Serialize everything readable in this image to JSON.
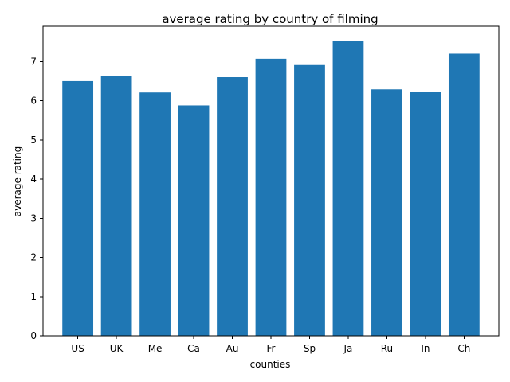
{
  "chart_data": {
    "type": "bar",
    "title": "average rating by country of filming",
    "xlabel": "counties",
    "ylabel": "average rating",
    "categories": [
      "US",
      "UK",
      "Me",
      "Ca",
      "Au",
      "Fr",
      "Sp",
      "Ja",
      "Ru",
      "In",
      "Ch"
    ],
    "values": [
      6.5,
      6.64,
      6.21,
      5.88,
      6.6,
      7.07,
      6.91,
      7.53,
      6.29,
      6.23,
      7.2
    ],
    "ylim": [
      0,
      7.9
    ],
    "yticks": [
      0,
      1,
      2,
      3,
      4,
      5,
      6,
      7
    ],
    "grid": false,
    "bar_color": "#1f77b4"
  }
}
